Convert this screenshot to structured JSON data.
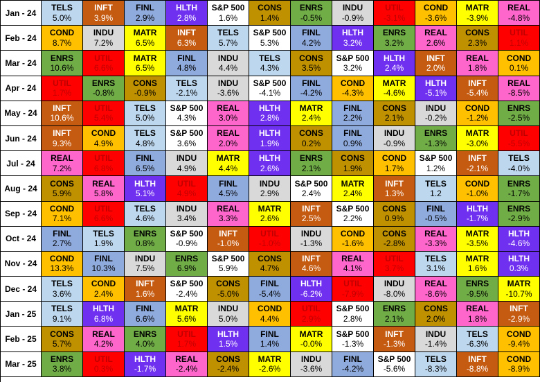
{
  "chart_data": {
    "type": "table",
    "title": "",
    "rows": [
      {
        "month": "Jan - 24",
        "cells": [
          [
            "TELS",
            "5.0%"
          ],
          [
            "INFT",
            "3.9%"
          ],
          [
            "FINL",
            "2.9%"
          ],
          [
            "HLTH",
            "2.8%"
          ],
          [
            "S&P 500",
            "1.6%"
          ],
          [
            "CONS",
            "1.4%"
          ],
          [
            "ENRS",
            "-0.5%"
          ],
          [
            "INDU",
            "-0.9%"
          ],
          [
            "UTIL",
            "-3.1%"
          ],
          [
            "COND",
            "-3.6%"
          ],
          [
            "MATR",
            "-3.9%"
          ],
          [
            "REAL",
            "-4.8%"
          ]
        ]
      },
      {
        "month": "Feb - 24",
        "cells": [
          [
            "COND",
            "8.7%"
          ],
          [
            "INDU",
            "7.2%"
          ],
          [
            "MATR",
            "6.5%"
          ],
          [
            "INFT",
            "6.3%"
          ],
          [
            "TELS",
            "5.7%"
          ],
          [
            "S&P 500",
            "5.3%"
          ],
          [
            "FINL",
            "4.2%"
          ],
          [
            "HLTH",
            "3.2%"
          ],
          [
            "ENRS",
            "3.2%"
          ],
          [
            "REAL",
            "2.6%"
          ],
          [
            "CONS",
            "2.3%"
          ],
          [
            "UTIL",
            "1.1%"
          ]
        ]
      },
      {
        "month": "Mar - 24",
        "cells": [
          [
            "ENRS",
            "10.6%"
          ],
          [
            "UTIL",
            "6.6%"
          ],
          [
            "MATR",
            "6.5%"
          ],
          [
            "FINL",
            "4.8%"
          ],
          [
            "INDU",
            "4.4%"
          ],
          [
            "TELS",
            "4.3%"
          ],
          [
            "CONS",
            "3.5%"
          ],
          [
            "S&P 500",
            "3.2%"
          ],
          [
            "HLTH",
            "2.4%"
          ],
          [
            "INFT",
            "2.0%"
          ],
          [
            "REAL",
            "1.8%"
          ],
          [
            "COND",
            "0.1%"
          ]
        ]
      },
      {
        "month": "Apr - 24",
        "cells": [
          [
            "UTIL",
            "1.7%"
          ],
          [
            "ENRS",
            "-0.8%"
          ],
          [
            "CONS",
            "-0.9%"
          ],
          [
            "TELS",
            "-2.1%"
          ],
          [
            "INDU",
            "-3.6%"
          ],
          [
            "S&P 500",
            "-4.1%"
          ],
          [
            "FINL",
            "-4.2%"
          ],
          [
            "COND",
            "-4.3%"
          ],
          [
            "MATR",
            "-4.6%"
          ],
          [
            "HLTH",
            "-5.1%"
          ],
          [
            "INFT",
            "-5.4%"
          ],
          [
            "REAL",
            "-8.5%"
          ]
        ]
      },
      {
        "month": "May - 24",
        "cells": [
          [
            "INFT",
            "10.6%"
          ],
          [
            "UTIL",
            "5.4%"
          ],
          [
            "TELS",
            "5.0%"
          ],
          [
            "S&P 500",
            "4.3%"
          ],
          [
            "REAL",
            "3.0%"
          ],
          [
            "HLTH",
            "2.8%"
          ],
          [
            "MATR",
            "2.4%"
          ],
          [
            "FINL",
            "2.2%"
          ],
          [
            "CONS",
            "2.1%"
          ],
          [
            "INDU",
            "-0.2%"
          ],
          [
            "COND",
            "-1.2%"
          ],
          [
            "ENRS",
            "-2.5%"
          ]
        ]
      },
      {
        "month": "Jun - 24",
        "cells": [
          [
            "INFT",
            "9.3%"
          ],
          [
            "COND",
            "4.9%"
          ],
          [
            "TELS",
            "4.8%"
          ],
          [
            "S&P 500",
            "3.6%"
          ],
          [
            "REAL",
            "2.0%"
          ],
          [
            "HLTH",
            "1.9%"
          ],
          [
            "CONS",
            "0.2%"
          ],
          [
            "FINL",
            "0.9%"
          ],
          [
            "INDU",
            "-0.9%"
          ],
          [
            "ENRS",
            "-1.3%"
          ],
          [
            "MATR",
            "-3.0%"
          ],
          [
            "UTIL",
            "-5.5%"
          ]
        ]
      },
      {
        "month": "Jul - 24",
        "cells": [
          [
            "REAL",
            "7.2%"
          ],
          [
            "UTIL",
            "6.8%"
          ],
          [
            "FINL",
            "6.5%"
          ],
          [
            "INDU",
            "4.9%"
          ],
          [
            "MATR",
            "4.4%"
          ],
          [
            "HLTH",
            "2.6%"
          ],
          [
            "ENRS",
            "2.1%"
          ],
          [
            "CONS",
            "1.9%"
          ],
          [
            "COND",
            "1.7%"
          ],
          [
            "S&P 500",
            "1.2%"
          ],
          [
            "INFT",
            "-2.1%"
          ],
          [
            "TELS",
            "-4.0%"
          ]
        ]
      },
      {
        "month": "Aug - 24",
        "cells": [
          [
            "CONS",
            "5.9%"
          ],
          [
            "REAL",
            "5.8%"
          ],
          [
            "HLTH",
            "5.1%"
          ],
          [
            "UTIL",
            "4.9%"
          ],
          [
            "FINL",
            "4.5%"
          ],
          [
            "INDU",
            "2.9%"
          ],
          [
            "S&P 500",
            "2.4%"
          ],
          [
            "MATR",
            "2.4%"
          ],
          [
            "INFT",
            "1.3%"
          ],
          [
            "TELS",
            "1.2"
          ],
          [
            "COND",
            "-1.0%"
          ],
          [
            "ENRS",
            "-1.7%"
          ]
        ]
      },
      {
        "month": "Sep - 24",
        "cells": [
          [
            "COND",
            "7.1%"
          ],
          [
            "UTIL",
            "6.6%"
          ],
          [
            "TELS",
            "4.6%"
          ],
          [
            "INDU",
            "3.4%"
          ],
          [
            "REAL",
            "3.3%"
          ],
          [
            "MATR",
            "2.6%"
          ],
          [
            "INFT",
            "2.5%"
          ],
          [
            "S&P 500",
            "2.2%"
          ],
          [
            "CONS",
            "0.9%"
          ],
          [
            "FINL",
            "-0.5%"
          ],
          [
            "HLTH",
            "-1.7%"
          ],
          [
            "ENRS",
            "-2.9%"
          ]
        ]
      },
      {
        "month": "Oct - 24",
        "cells": [
          [
            "FINL",
            "2.7%"
          ],
          [
            "TELS",
            "1.9%"
          ],
          [
            "ENRS",
            "0.8%"
          ],
          [
            "S&P 500",
            "-0.9%"
          ],
          [
            "INFT",
            "-1.0%"
          ],
          [
            "UTIL",
            "-1.0%"
          ],
          [
            "INDU",
            "-1.3%"
          ],
          [
            "COND",
            "-1.6%"
          ],
          [
            "CONS",
            "-2.8%"
          ],
          [
            "REAL",
            "-3.3%"
          ],
          [
            "MATR",
            "-3.5%"
          ],
          [
            "HLTH",
            "-4.6%"
          ]
        ]
      },
      {
        "month": "Nov - 24",
        "cells": [
          [
            "COND",
            "13.3%"
          ],
          [
            "FINL",
            "10.3%"
          ],
          [
            "INDU",
            "7.5%"
          ],
          [
            "ENRS",
            "6.9%"
          ],
          [
            "S&P 500",
            "5.9%"
          ],
          [
            "CONS",
            "4.7%"
          ],
          [
            "INFT",
            "4.6%"
          ],
          [
            "REAL",
            "4.1%"
          ],
          [
            "UTIL",
            "3.7%"
          ],
          [
            "TELS",
            "3.1%"
          ],
          [
            "MATR",
            "1.6%"
          ],
          [
            "HLTH",
            "0.3%"
          ]
        ]
      },
      {
        "month": "Dec - 24",
        "cells": [
          [
            "TELS",
            "3.6%"
          ],
          [
            "COND",
            "2.4%"
          ],
          [
            "INFT",
            "1.6%"
          ],
          [
            "S&P 500",
            "-2.4%"
          ],
          [
            "CONS",
            "-5.0%"
          ],
          [
            "FINL",
            "-5.4%"
          ],
          [
            "HLTH",
            "-6.2%"
          ],
          [
            "UTIL",
            "-7.9%"
          ],
          [
            "INDU",
            "-8.0%"
          ],
          [
            "REAL",
            "-8.6%"
          ],
          [
            "ENRS",
            "-9.5%"
          ],
          [
            "MATR",
            "-10.7%"
          ]
        ]
      },
      {
        "month": "Jan - 25",
        "cells": [
          [
            "TELS",
            "9.1%"
          ],
          [
            "HLTH",
            "6.8%"
          ],
          [
            "FINL",
            "6.6%"
          ],
          [
            "MATR",
            "5.6%"
          ],
          [
            "INDU",
            "5.0%"
          ],
          [
            "COND",
            "4.4%"
          ],
          [
            "UTIL",
            "2.9%"
          ],
          [
            "S&P 500",
            "2.8%"
          ],
          [
            "ENRS",
            "2.1%"
          ],
          [
            "CONS",
            "2.0%"
          ],
          [
            "REAL",
            "1.8%"
          ],
          [
            "INFT",
            "-2.9%"
          ]
        ]
      },
      {
        "month": "Feb - 25",
        "cells": [
          [
            "CONS",
            "5.7%"
          ],
          [
            "REAL",
            "4.2%"
          ],
          [
            "ENRS",
            "4.0%"
          ],
          [
            "UTIL",
            "1.7%"
          ],
          [
            "HLTH",
            "1.5%"
          ],
          [
            "FINL",
            "1.4%"
          ],
          [
            "MATR",
            "-0.0%"
          ],
          [
            "S&P 500",
            "-1.3%"
          ],
          [
            "INFT",
            "-1.3%"
          ],
          [
            "INDU",
            "-1.4%"
          ],
          [
            "TELS",
            "-6.3%"
          ],
          [
            "COND",
            "-9.4%"
          ]
        ]
      },
      {
        "month": "Mar - 25",
        "cells": [
          [
            "ENRS",
            "3.8%"
          ],
          [
            "UTIL",
            "0.3%"
          ],
          [
            "HLTH",
            "-1.7%"
          ],
          [
            "REAL",
            "-2.4%"
          ],
          [
            "CONS",
            "-2.4%"
          ],
          [
            "MATR",
            "-2.6%"
          ],
          [
            "INDU",
            "-3.6%"
          ],
          [
            "FINL",
            "-4.2%"
          ],
          [
            "S&P 500",
            "-5.6%"
          ],
          [
            "TELS",
            "-8.3%"
          ],
          [
            "INFT",
            "-8.8%"
          ],
          [
            "COND",
            "-8.9%"
          ]
        ]
      }
    ]
  },
  "sector_colors": {
    "TELS": "#bdd7ee",
    "INFT": "#c55a11",
    "FINL": "#8faadc",
    "HLTH": "#7030f0",
    "S&P 500": "#ffffff",
    "CONS": "#bf9000",
    "ENRS": "#70ad47",
    "INDU": "#d9d9d9",
    "UTIL": "#ff0000",
    "COND": "#ffc000",
    "MATR": "#ffff00",
    "REAL": "#ff66cc"
  },
  "sector_text_colors": {
    "INFT": "#ffffff",
    "HLTH": "#ffffff",
    "UTIL": "#c00000"
  }
}
